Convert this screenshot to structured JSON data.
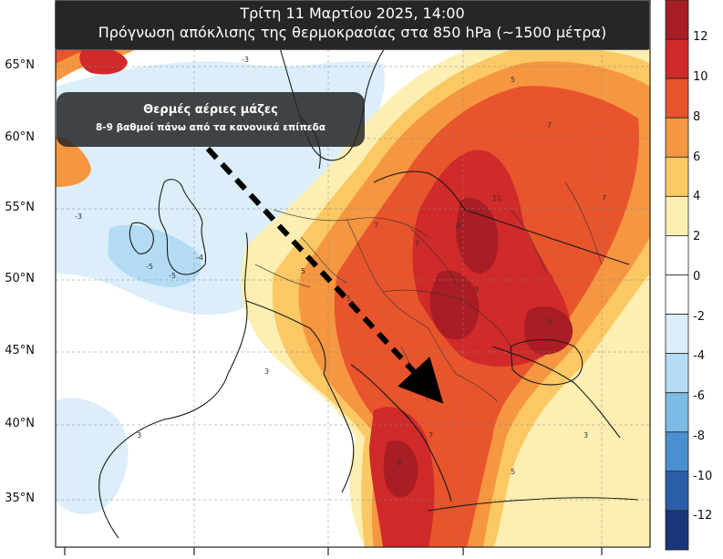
{
  "title": {
    "line1": "Τρίτη  11 Μαρτίου  2025, 14:00",
    "line2": "Πρόγνωση  απόκλισης  της θερμοκρασίας  στα  850 hPa (~1500 μέτρα)"
  },
  "callout": {
    "title": "Θερμές αέριες μάζες",
    "subtitle": "8-9 βαθμοί πάνω από τα κανονικά επίπεδα"
  },
  "latitude_labels": [
    "65°N",
    "60°N",
    "55°N",
    "50°N",
    "45°N",
    "40°N",
    "35°N"
  ],
  "colorbar": {
    "labels": [
      "12",
      "10",
      "8",
      "6",
      "4",
      "2",
      "0",
      "-2",
      "-4",
      "-6",
      "-8",
      "-10",
      "-12"
    ],
    "colors": [
      "#a81e24",
      "#d02a2a",
      "#e8542c",
      "#f59640",
      "#fbc863",
      "#fdeeb2",
      "#ffffff",
      "#ffffff",
      "#dbeefa",
      "#b3dcf4",
      "#7bbbe6",
      "#4a8fcf",
      "#2a5ea8",
      "#1b357a"
    ]
  },
  "arrow": {
    "style": "dashed",
    "direction": "north-west to south-east toward Greece"
  },
  "contour_values": [
    "-3",
    "-5",
    "-4",
    "3",
    "5",
    "7",
    "9",
    "11"
  ]
}
